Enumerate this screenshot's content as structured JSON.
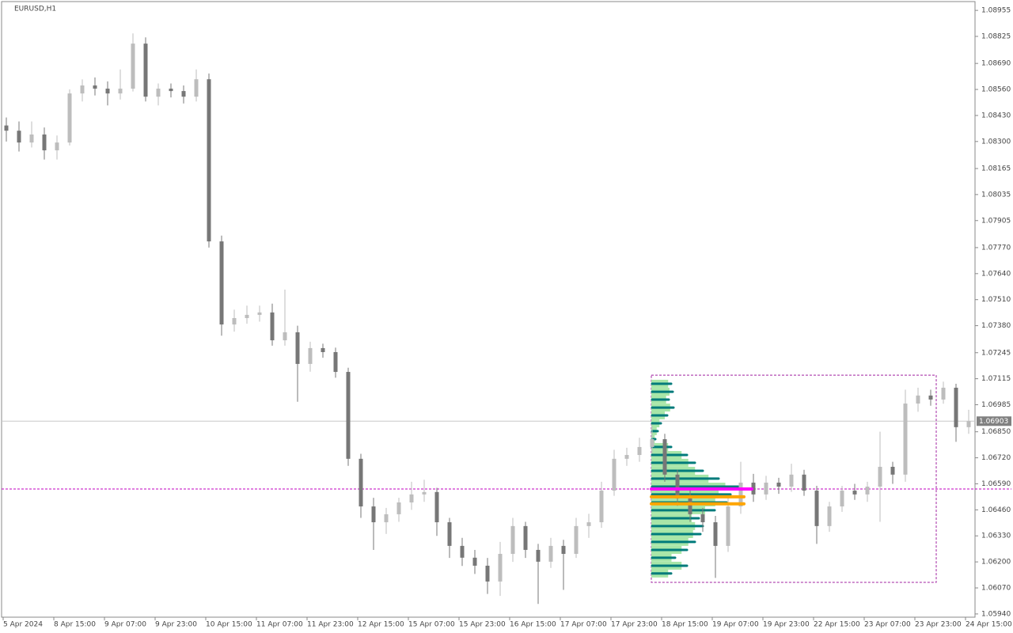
{
  "chart_data": {
    "type": "candlestick",
    "title": "EURUSD,H1",
    "last_price": 1.06903,
    "ylim": [
      1.05912,
      1.08995
    ],
    "yticks": [
      1.08955,
      1.08825,
      {
        "value": 1.0869,
        "label": "1.08690"
      },
      {
        "value": 1.0856,
        "label": "1.08560"
      },
      {
        "value": 1.0843,
        "label": "1.08430"
      },
      {
        "value": 1.083,
        "label": "1.08300"
      },
      1.08165,
      1.08035,
      1.07905,
      {
        "value": 1.0777,
        "label": "1.07770"
      },
      {
        "value": 1.0764,
        "label": "1.07640"
      },
      {
        "value": 1.0751,
        "label": "1.07510"
      },
      {
        "value": 1.0738,
        "label": "1.07380"
      },
      1.07245,
      1.07115,
      1.06985,
      {
        "value": 1.0685,
        "label": "1.06850"
      },
      {
        "value": 1.0672,
        "label": "1.06720"
      },
      {
        "value": 1.0659,
        "label": "1.06590"
      },
      {
        "value": 1.0646,
        "label": "1.06460"
      },
      {
        "value": 1.0633,
        "label": "1.06330"
      },
      {
        "value": 1.062,
        "label": "1.06200"
      },
      {
        "value": 1.0607,
        "label": "1.06070"
      },
      {
        "value": 1.0594,
        "label": "1.05940"
      }
    ],
    "categories": [
      "5 Apr 2024",
      null,
      null,
      null,
      "8 Apr 15:00",
      null,
      null,
      null,
      "9 Apr 07:00",
      null,
      null,
      null,
      "9 Apr 23:00",
      null,
      null,
      null,
      "10 Apr 15:00",
      null,
      null,
      null,
      "11 Apr 07:00",
      null,
      null,
      null,
      "11 Apr 23:00",
      null,
      null,
      null,
      "12 Apr 15:00",
      null,
      null,
      null,
      "15 Apr 07:00",
      null,
      null,
      null,
      "15 Apr 23:00",
      null,
      null,
      null,
      "16 Apr 15:00",
      null,
      null,
      null,
      "17 Apr 07:00",
      null,
      null,
      null,
      "17 Apr 23:00",
      null,
      null,
      null,
      "18 Apr 15:00",
      null,
      null,
      null,
      "19 Apr 07:00",
      null,
      null,
      null,
      "19 Apr 23:00",
      null,
      null,
      null,
      "22 Apr 15:00",
      null,
      null,
      null,
      "23 Apr 07:00",
      null,
      null,
      null,
      "23 Apr 23:00",
      null,
      null,
      null,
      "24 Apr 15:00"
    ],
    "bull_color": "#bdbdbd",
    "bear_color": "#777777",
    "ohlc": [
      [
        1.0838,
        1.0842,
        1.083,
        1.08354
      ],
      [
        1.08354,
        1.084,
        1.0825,
        1.08295
      ],
      [
        1.08295,
        1.084,
        1.0827,
        1.08335
      ],
      [
        1.08335,
        1.0837,
        1.0821,
        1.08256
      ],
      [
        1.08256,
        1.0833,
        1.0821,
        1.08295
      ],
      [
        1.08295,
        1.0856,
        1.0828,
        1.0854
      ],
      [
        1.0854,
        1.0861,
        1.085,
        1.0858
      ],
      [
        1.0858,
        1.0862,
        1.0853,
        1.08564
      ],
      [
        1.08564,
        1.086,
        1.0848,
        1.0854
      ],
      [
        1.0854,
        1.0866,
        1.0851,
        1.08564
      ],
      [
        1.08564,
        1.0884,
        1.0855,
        1.08789
      ],
      [
        1.08789,
        1.0882,
        1.085,
        1.08524
      ],
      [
        1.08524,
        1.0859,
        1.0848,
        1.08564
      ],
      [
        1.08564,
        1.0859,
        1.0852,
        1.08552
      ],
      [
        1.08552,
        1.0858,
        1.0849,
        1.08524
      ],
      [
        1.08524,
        1.0866,
        1.085,
        1.08611
      ],
      [
        1.08611,
        1.0864,
        1.0777,
        1.07801
      ],
      [
        1.07801,
        1.0783,
        1.0733,
        1.07386
      ],
      [
        1.07386,
        1.0746,
        1.0735,
        1.07418
      ],
      [
        1.07418,
        1.0748,
        1.0739,
        1.07434
      ],
      [
        1.07434,
        1.0748,
        1.074,
        1.07446
      ],
      [
        1.07446,
        1.0749,
        1.0728,
        1.07307
      ],
      [
        1.07307,
        1.0756,
        1.0728,
        1.07347
      ],
      [
        1.07347,
        1.0738,
        1.07,
        1.07189
      ],
      [
        1.07189,
        1.073,
        1.0715,
        1.07268
      ],
      [
        1.07268,
        1.0729,
        1.0722,
        1.07248
      ],
      [
        1.07248,
        1.0727,
        1.0712,
        1.07149
      ],
      [
        1.07149,
        1.0717,
        1.0668,
        1.06715
      ],
      [
        1.06715,
        1.0674,
        1.0642,
        1.06477
      ],
      [
        1.06477,
        1.0652,
        1.0626,
        1.06398
      ],
      [
        1.06398,
        1.0647,
        1.0634,
        1.06438
      ],
      [
        1.06438,
        1.0652,
        1.064,
        1.06497
      ],
      [
        1.06497,
        1.066,
        1.0646,
        1.06537
      ],
      [
        1.06537,
        1.0661,
        1.065,
        1.06549
      ],
      [
        1.06549,
        1.0657,
        1.0633,
        1.06398
      ],
      [
        1.06398,
        1.0642,
        1.0622,
        1.0628
      ],
      [
        1.0628,
        1.0632,
        1.0618,
        1.06221
      ],
      [
        1.06221,
        1.0626,
        1.0614,
        1.06181
      ],
      [
        1.06181,
        1.0622,
        1.0604,
        1.06102
      ],
      [
        1.06102,
        1.063,
        1.0603,
        1.0624
      ],
      [
        1.0624,
        1.0642,
        1.062,
        1.06379
      ],
      [
        1.06379,
        1.064,
        1.0622,
        1.0626
      ],
      [
        1.0626,
        1.0629,
        1.0599,
        1.06201
      ],
      [
        1.06201,
        1.0632,
        1.0617,
        1.0628
      ],
      [
        1.0628,
        1.0631,
        1.0606,
        1.0624
      ],
      [
        1.0624,
        1.0642,
        1.0622,
        1.06379
      ],
      [
        1.06379,
        1.0644,
        1.0632,
        1.06398
      ],
      [
        1.06398,
        1.066,
        1.0637,
        1.06556
      ],
      [
        1.06556,
        1.0676,
        1.0653,
        1.06715
      ],
      [
        1.06715,
        1.0677,
        1.0668,
        1.06734
      ],
      [
        1.06734,
        1.0682,
        1.067,
        1.06774
      ],
      [
        1.06774,
        1.0688,
        1.0674,
        1.06813
      ],
      [
        1.06813,
        1.0684,
        1.066,
        1.06636
      ],
      [
        1.06636,
        1.0666,
        1.0648,
        1.06517
      ],
      [
        1.06517,
        1.0656,
        1.064,
        1.06438
      ],
      [
        1.06438,
        1.0647,
        1.0635,
        1.06398
      ],
      [
        1.06398,
        1.0643,
        1.0612,
        1.0628
      ],
      [
        1.0628,
        1.0652,
        1.0625,
        1.06477
      ],
      [
        1.06477,
        1.067,
        1.0644,
        1.06596
      ],
      [
        1.06596,
        1.0664,
        1.065,
        1.06537
      ],
      [
        1.06537,
        1.0663,
        1.0651,
        1.06596
      ],
      [
        1.06596,
        1.0662,
        1.0654,
        1.06576
      ],
      [
        1.06576,
        1.0669,
        1.0655,
        1.06636
      ],
      [
        1.06636,
        1.0666,
        1.0653,
        1.06556
      ],
      [
        1.06556,
        1.0658,
        1.0629,
        1.06379
      ],
      [
        1.06379,
        1.065,
        1.0635,
        1.06477
      ],
      [
        1.06477,
        1.0658,
        1.0645,
        1.06556
      ],
      [
        1.06556,
        1.0659,
        1.0651,
        1.06537
      ],
      [
        1.06537,
        1.066,
        1.065,
        1.06576
      ],
      [
        1.06576,
        1.0685,
        1.064,
        1.06675
      ],
      [
        1.06675,
        1.067,
        1.0659,
        1.06636
      ],
      [
        1.06636,
        1.0706,
        1.066,
        1.06991
      ],
      [
        1.06991,
        1.0707,
        1.0695,
        1.07031
      ],
      [
        1.07031,
        1.0706,
        1.0698,
        1.07011
      ],
      [
        1.07011,
        1.071,
        1.0699,
        1.0707
      ],
      [
        1.0707,
        1.0709,
        1.068,
        1.06873
      ],
      [
        1.06873,
        1.0696,
        1.0684,
        1.06903
      ]
    ],
    "profile": {
      "top": 1.07133,
      "bottom": 1.06098,
      "color": "#007b7b",
      "fill": "#a8e6a8",
      "levels": [
        1.0709,
        1.0705,
        1.07011,
        1.06971,
        1.06932,
        1.06892,
        1.06853,
        1.06813,
        1.06774,
        1.06734,
        1.06695,
        1.06655,
        1.06616,
        1.06576,
        1.06537,
        1.06497,
        1.06458,
        1.06418,
        1.06379,
        1.06339,
        1.063,
        1.0626,
        1.06221,
        1.06181,
        1.06142
      ],
      "volumes": [
        25,
        27,
        22,
        28,
        20,
        12,
        8,
        5,
        25,
        45,
        55,
        65,
        85,
        110,
        100,
        95,
        80,
        60,
        65,
        62,
        55,
        45,
        30,
        45,
        25
      ],
      "lines": [
        {
          "value": 1.06564,
          "color": "#ff00ff"
        },
        {
          "value": 1.06525,
          "color": "#ffa500"
        },
        {
          "value": 1.0649,
          "color": "#ffa500"
        }
      ]
    },
    "level_line": {
      "value": 1.06564,
      "color": "#c000c0"
    }
  }
}
